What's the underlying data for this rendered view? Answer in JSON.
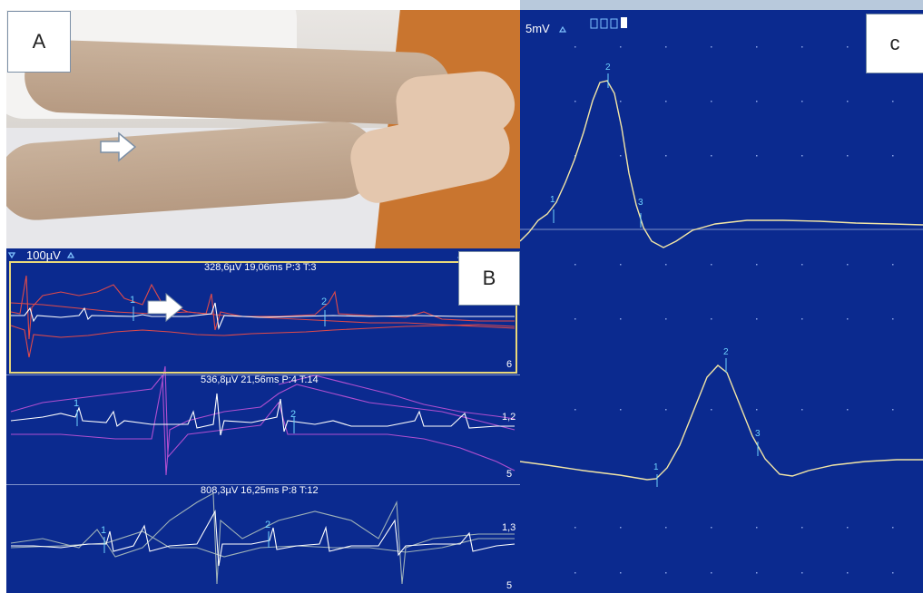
{
  "panels": {
    "a": {
      "label": "A"
    },
    "b": {
      "label": "B",
      "scale": "100µV",
      "trace1": {
        "info": "328,6µV 19,06ms P:3 T:3",
        "right_scale": "6"
      },
      "trace2": {
        "info": "536,8µV 21,56ms P:4 T:14",
        "right_scale_top": "1,2",
        "right_scale_bottom": "5"
      },
      "trace3": {
        "info": "808,3µV 16,25ms P:8 T:12",
        "right_scale_top": "1,3",
        "right_scale_bottom": "5"
      }
    },
    "c": {
      "label": "c",
      "scale": "5mV"
    }
  },
  "markers": [
    "1",
    "2",
    "3"
  ],
  "colors": {
    "background": "#0b2a8f",
    "trace_red": "#e04a4a",
    "trace_purple": "#b04fd0",
    "trace_white": "#ffffff",
    "trace_gray": "#9fb2b8",
    "trace_yellow": "#f3e6a6",
    "selection": "#e8d77a"
  }
}
